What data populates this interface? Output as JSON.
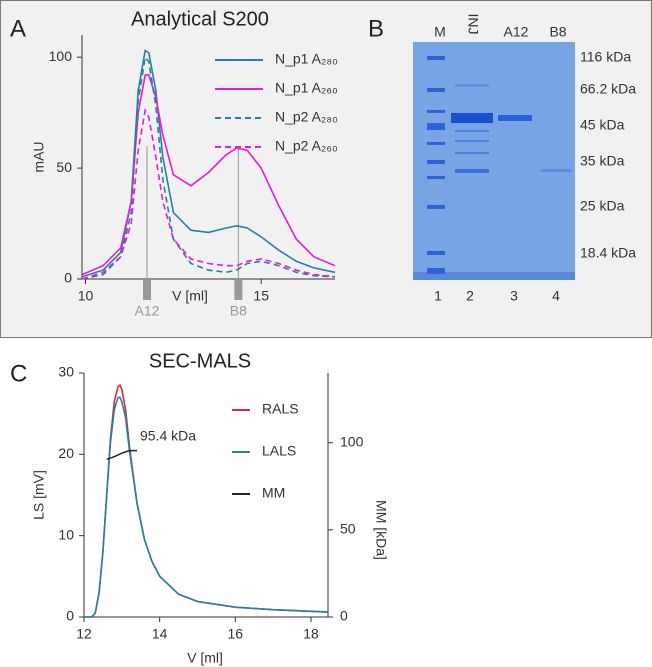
{
  "chart_data": [
    {
      "type": "line",
      "panel": "A",
      "title": "Analytical S200",
      "xlabel": "V [ml]",
      "ylabel": "mAU",
      "xlim": [
        9.9,
        17.1
      ],
      "xticks": [
        10,
        15
      ],
      "ylim": [
        0,
        110
      ],
      "yticks": [
        0,
        50,
        100
      ],
      "legend": "upper right",
      "x": [
        9.9,
        10.5,
        11,
        11.3,
        11.5,
        11.7,
        11.8,
        12.0,
        12.2,
        12.5,
        13,
        13.5,
        14,
        14.3,
        14.6,
        15,
        15.5,
        16,
        16.5,
        17.1
      ],
      "series": [
        {
          "name": "N_p1 A₂₈₀",
          "color": "#2a7ea3",
          "style": "solid",
          "values": [
            1,
            4,
            12,
            35,
            85,
            103,
            102,
            85,
            55,
            30,
            22,
            21,
            23,
            24,
            23,
            19,
            13,
            8,
            5,
            3
          ]
        },
        {
          "name": "N_p1 A₂₆₀",
          "color": "#e01fd0",
          "style": "solid",
          "values": [
            2,
            6,
            14,
            35,
            75,
            92,
            92,
            82,
            65,
            47,
            42,
            48,
            56,
            59,
            58,
            50,
            33,
            18,
            10,
            6
          ]
        },
        {
          "name": "N_p2 A₂₈₀",
          "color": "#2a7ea3",
          "style": "dashed",
          "values": [
            0,
            2,
            10,
            30,
            80,
            100,
            98,
            78,
            45,
            18,
            7,
            4,
            3,
            4,
            7,
            8,
            6,
            3,
            1.5,
            1
          ]
        },
        {
          "name": "N_p2 A₂₆₀",
          "color": "#e01fd0",
          "style": "dashed",
          "values": [
            0,
            3,
            10,
            25,
            58,
            76,
            73,
            55,
            35,
            18,
            9,
            7,
            6,
            6,
            8,
            9,
            7,
            4,
            2,
            1
          ]
        }
      ],
      "markers": [
        {
          "label": "A12",
          "x": 11.75
        },
        {
          "label": "B8",
          "x": 14.35
        }
      ]
    },
    {
      "type": "line",
      "panel": "C",
      "title": "SEC-MALS",
      "xlabel": "V [ml]",
      "ylabel": "LS [mV]",
      "y2label": "MM [kDa]",
      "xlim": [
        12,
        18.45
      ],
      "xticks": [
        12,
        14,
        16,
        18
      ],
      "ylim": [
        0,
        30
      ],
      "yticks": [
        0,
        10,
        20,
        30
      ],
      "y2lim": [
        0,
        140
      ],
      "y2ticks": [
        0,
        50,
        100
      ],
      "legend": "upper right",
      "annotation": "95.4 kDa",
      "x": [
        12.0,
        12.2,
        12.3,
        12.4,
        12.5,
        12.6,
        12.7,
        12.8,
        12.9,
        12.95,
        13.0,
        13.1,
        13.2,
        13.4,
        13.6,
        13.8,
        14.0,
        14.5,
        15,
        16,
        17,
        18,
        18.45
      ],
      "series": [
        {
          "name": "RALS",
          "color": "#d03030",
          "style": "solid",
          "values": [
            0,
            0,
            0.5,
            3,
            8,
            15,
            22,
            26.5,
            28.3,
            28.5,
            28,
            25.5,
            21,
            14,
            9.5,
            6.8,
            5,
            2.8,
            1.9,
            1.2,
            0.9,
            0.7,
            0.6
          ]
        },
        {
          "name": "LALS",
          "color": "#2a7ea3",
          "style": "solid",
          "values": [
            0,
            0,
            0.5,
            3,
            8,
            15,
            21.5,
            25.5,
            27,
            27,
            26.5,
            24.5,
            20.5,
            14,
            9.5,
            6.8,
            5,
            2.8,
            1.9,
            1.2,
            0.9,
            0.7,
            0.6
          ]
        },
        {
          "name": "MM",
          "color": "#222222",
          "style": "solid",
          "axis": "y2",
          "x": [
            12.6,
            12.8,
            13.0,
            13.2,
            13.4
          ],
          "values": [
            90.5,
            92,
            94,
            95.5,
            95.5
          ]
        }
      ]
    }
  ],
  "gel": {
    "panel": "B",
    "lanes_top": [
      "M",
      "INJ",
      "A12",
      "B8"
    ],
    "markers": [
      "116 kDa",
      "66.2 kDa",
      "45 kDa",
      "35 kDa",
      "25 kDa",
      "18.4 kDa"
    ],
    "lanes_bottom": [
      "1",
      "2",
      "3",
      "4"
    ]
  }
}
